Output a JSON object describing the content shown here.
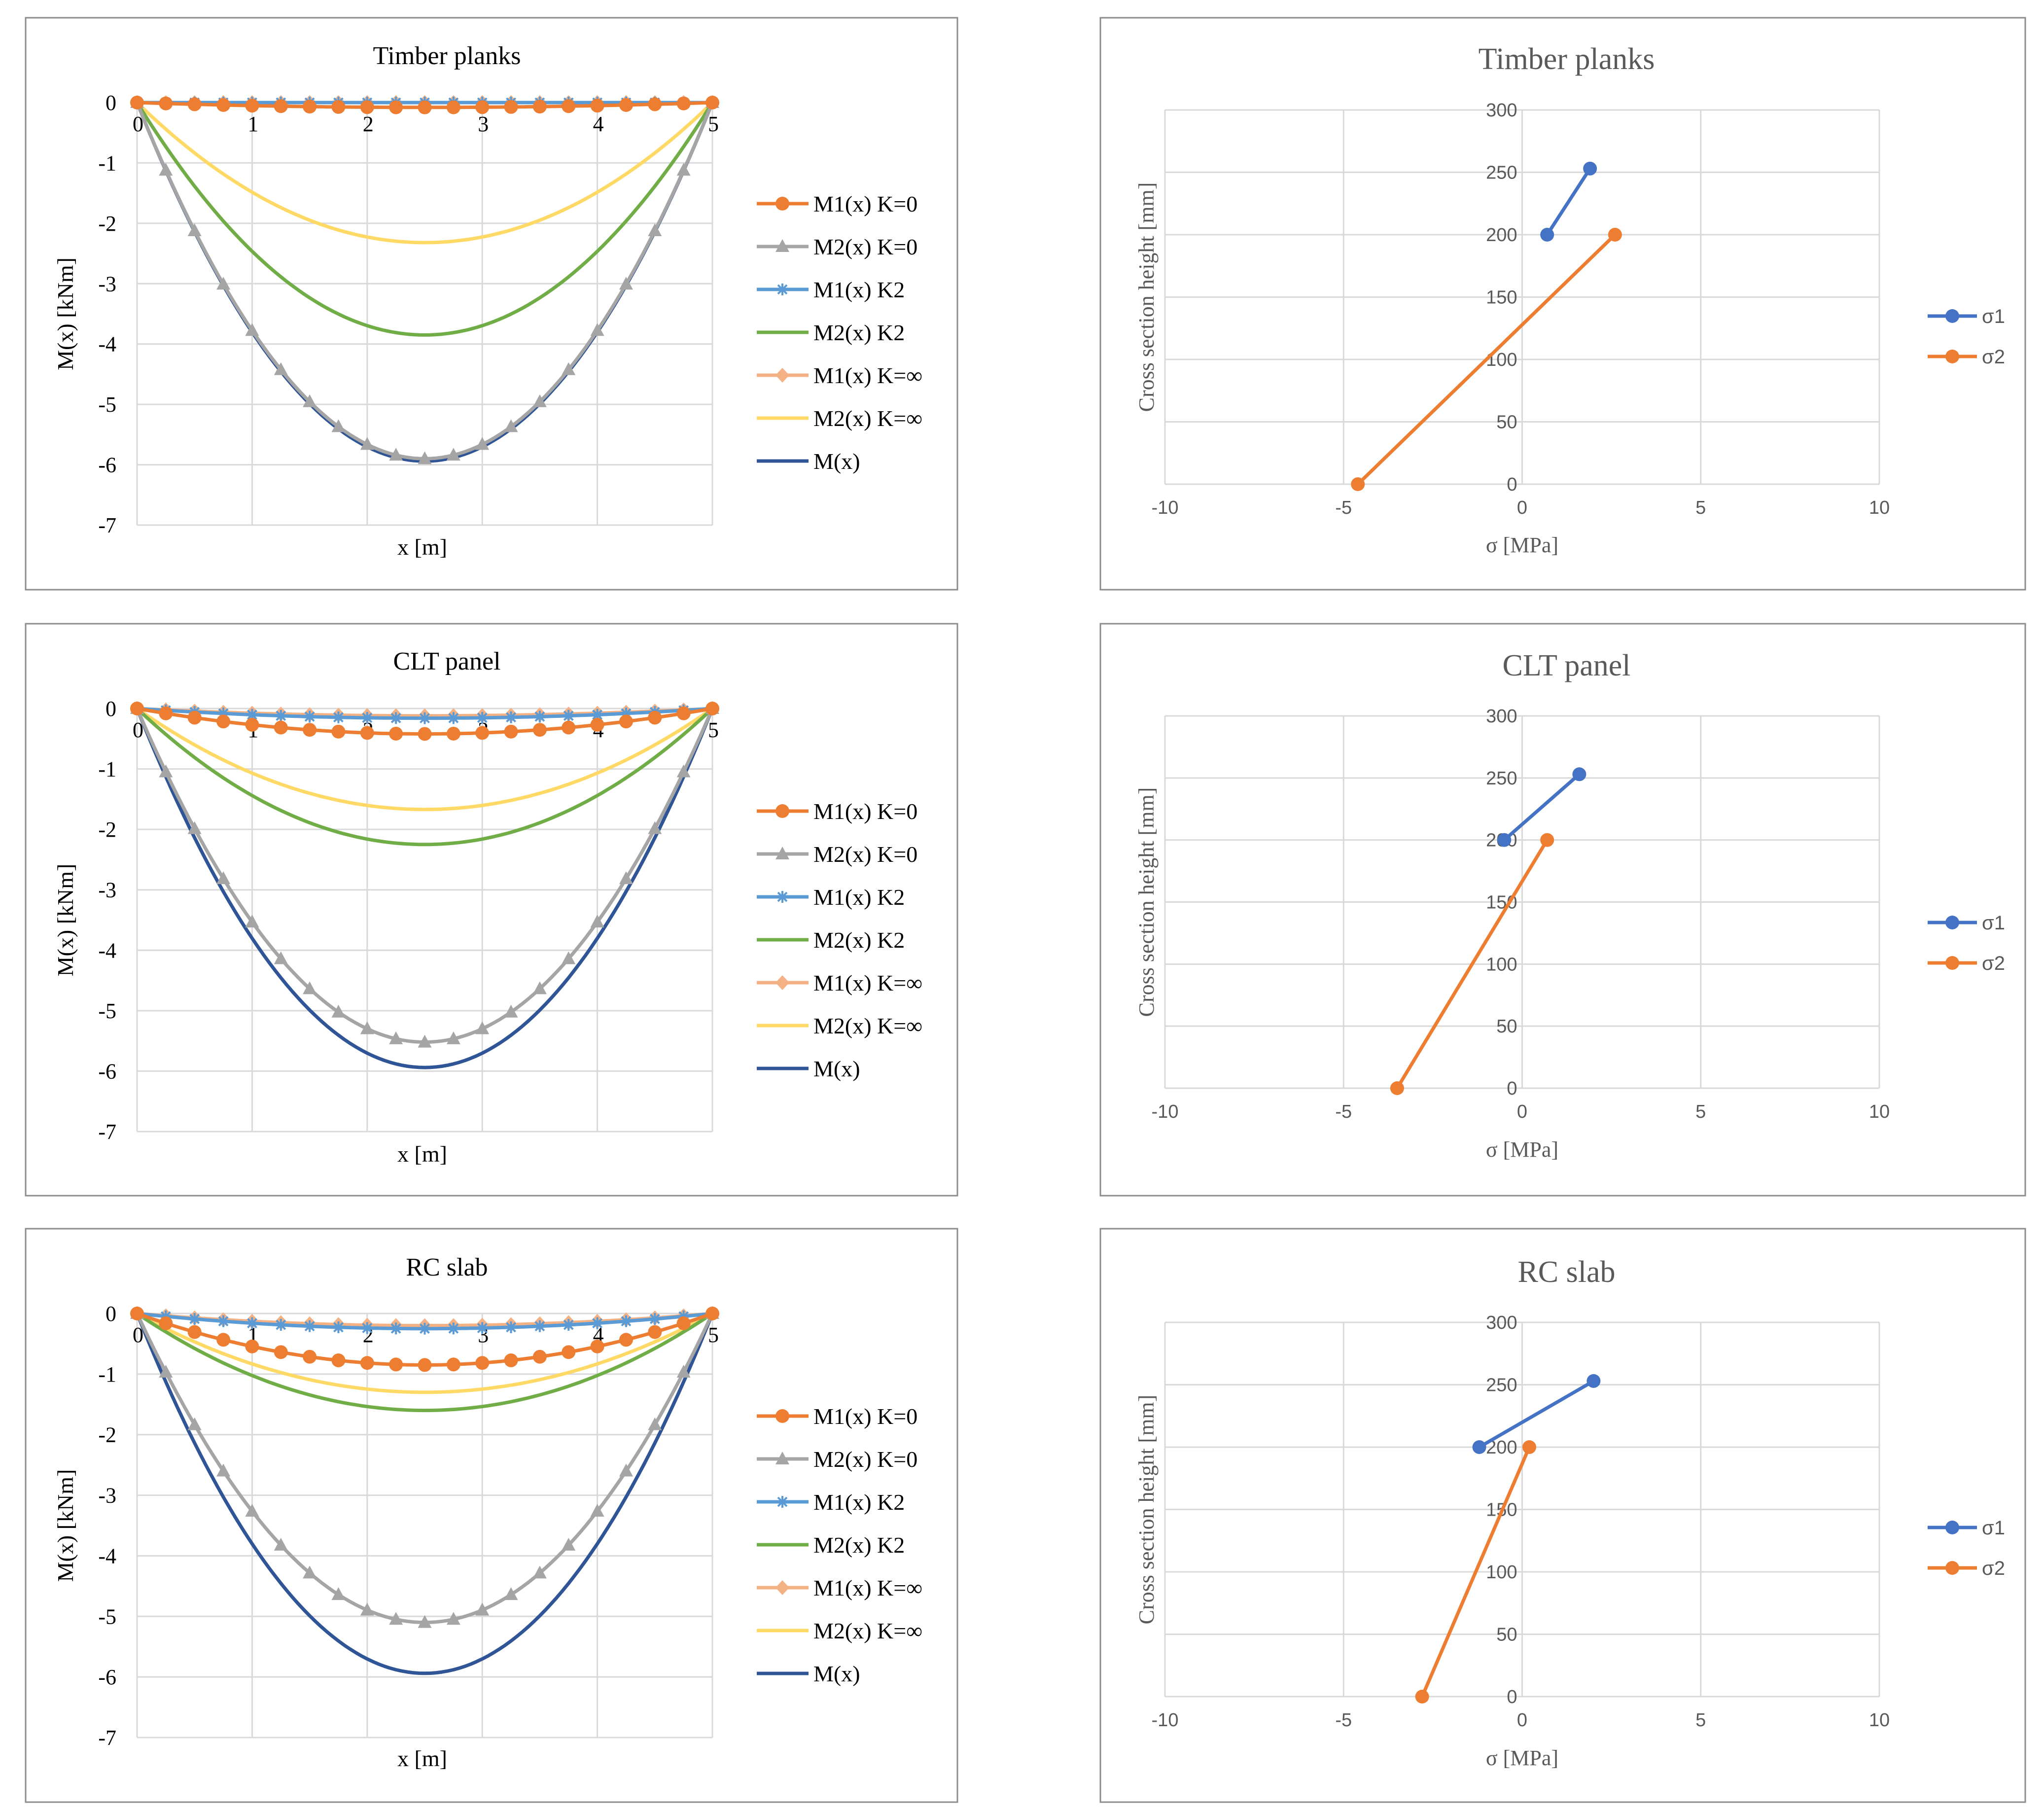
{
  "chart_data": [
    {
      "type": "line",
      "title": "Timber planks",
      "xlabel": "x [m]",
      "ylabel": "M(x) [kNm]",
      "xlim": [
        0,
        5
      ],
      "ylim": [
        -7,
        0
      ],
      "xticks": [
        "0",
        "1",
        "2",
        "3",
        "4",
        "5"
      ],
      "yticks": [
        "0",
        "-1",
        "-2",
        "-3",
        "-4",
        "-5",
        "-6",
        "-7"
      ],
      "legend_position": "right",
      "curve_formula": "parabola: M(x) = 4*Mmid*(x/5)*(1 - x/5)",
      "series": [
        {
          "name": "M1(x) K=0",
          "color": "#ED7D31",
          "marker": "circle",
          "midspan": -0.08
        },
        {
          "name": "M2(x) K=0",
          "color": "#A5A5A5",
          "marker": "triangle",
          "midspan": -5.9
        },
        {
          "name": "M1(x) K2",
          "color": "#5B9BD5",
          "marker": "star",
          "midspan": 0.0
        },
        {
          "name": "M2(x) K2",
          "color": "#70AD47",
          "marker": "none",
          "midspan": -3.85
        },
        {
          "name": "M1(x) K=∞",
          "color": "#F4B183",
          "marker": "diamond",
          "midspan": 0.0
        },
        {
          "name": "M2(x) K=∞",
          "color": "#FFD966",
          "marker": "none",
          "midspan": -2.32
        },
        {
          "name": "M(x)",
          "color": "#2F5597",
          "marker": "none",
          "midspan": -5.94
        }
      ]
    },
    {
      "type": "line",
      "title": "CLT panel",
      "xlabel": "x [m]",
      "ylabel": "M(x) [kNm]",
      "xlim": [
        0,
        5
      ],
      "ylim": [
        -7,
        0
      ],
      "xticks": [
        "0",
        "1",
        "2",
        "3",
        "4",
        "5"
      ],
      "yticks": [
        "0",
        "-1",
        "-2",
        "-3",
        "-4",
        "-5",
        "-6",
        "-7"
      ],
      "legend_position": "right",
      "curve_formula": "parabola: M(x) = 4*Mmid*(x/5)*(1 - x/5)",
      "series": [
        {
          "name": "M1(x) K=0",
          "color": "#ED7D31",
          "marker": "circle",
          "midspan": -0.42
        },
        {
          "name": "M2(x) K=0",
          "color": "#A5A5A5",
          "marker": "triangle",
          "midspan": -5.52
        },
        {
          "name": "M1(x) K2",
          "color": "#5B9BD5",
          "marker": "star",
          "midspan": -0.16
        },
        {
          "name": "M2(x) K2",
          "color": "#70AD47",
          "marker": "none",
          "midspan": -2.25
        },
        {
          "name": "M1(x) K=∞",
          "color": "#F4B183",
          "marker": "diamond",
          "midspan": -0.12
        },
        {
          "name": "M2(x) K=∞",
          "color": "#FFD966",
          "marker": "none",
          "midspan": -1.67
        },
        {
          "name": "M(x)",
          "color": "#2F5597",
          "marker": "none",
          "midspan": -5.94
        }
      ]
    },
    {
      "type": "line",
      "title": "RC slab",
      "xlabel": "x [m]",
      "ylabel": "M(x) [kNm]",
      "xlim": [
        0,
        5
      ],
      "ylim": [
        -7,
        0
      ],
      "xticks": [
        "0",
        "1",
        "2",
        "3",
        "4",
        "5"
      ],
      "yticks": [
        "0",
        "-1",
        "-2",
        "-3",
        "-4",
        "-5",
        "-6",
        "-7"
      ],
      "legend_position": "right",
      "curve_formula": "parabola: M(x) = 4*Mmid*(x/5)*(1 - x/5)",
      "series": [
        {
          "name": "M1(x) K=0",
          "color": "#ED7D31",
          "marker": "circle",
          "midspan": -0.85
        },
        {
          "name": "M2(x) K=0",
          "color": "#A5A5A5",
          "marker": "triangle",
          "midspan": -5.1
        },
        {
          "name": "M1(x) K2",
          "color": "#5B9BD5",
          "marker": "star",
          "midspan": -0.25
        },
        {
          "name": "M2(x) K2",
          "color": "#70AD47",
          "marker": "none",
          "midspan": -1.6
        },
        {
          "name": "M1(x) K=∞",
          "color": "#F4B183",
          "marker": "diamond",
          "midspan": -0.2
        },
        {
          "name": "M2(x) K=∞",
          "color": "#FFD966",
          "marker": "none",
          "midspan": -1.3
        },
        {
          "name": "M(x)",
          "color": "#2F5597",
          "marker": "none",
          "midspan": -5.94
        }
      ]
    },
    {
      "type": "scatter",
      "title": "Timber planks",
      "xlabel": "σ [MPa]",
      "ylabel": "Cross section height [mm]",
      "xlim": [
        -10,
        10
      ],
      "ylim": [
        0,
        300
      ],
      "xticks": [
        "-10",
        "-5",
        "0",
        "5",
        "10"
      ],
      "yticks": [
        "0",
        "50",
        "100",
        "150",
        "200",
        "250",
        "300"
      ],
      "legend_position": "right",
      "series": [
        {
          "name": "σ1",
          "color": "#4472C4",
          "points": [
            [
              0.7,
              200
            ],
            [
              1.9,
              253
            ]
          ]
        },
        {
          "name": "σ2",
          "color": "#ED7D31",
          "points": [
            [
              -4.6,
              0
            ],
            [
              2.6,
              200
            ]
          ]
        }
      ]
    },
    {
      "type": "scatter",
      "title": "CLT panel",
      "xlabel": "σ [MPa]",
      "ylabel": "Cross section height [mm]",
      "xlim": [
        -10,
        10
      ],
      "ylim": [
        0,
        300
      ],
      "xticks": [
        "-10",
        "-5",
        "0",
        "5",
        "10"
      ],
      "yticks": [
        "0",
        "50",
        "100",
        "150",
        "200",
        "250",
        "300"
      ],
      "legend_position": "right",
      "series": [
        {
          "name": "σ1",
          "color": "#4472C4",
          "points": [
            [
              -0.5,
              200
            ],
            [
              1.6,
              253
            ]
          ]
        },
        {
          "name": "σ2",
          "color": "#ED7D31",
          "points": [
            [
              -3.5,
              0
            ],
            [
              0.7,
              200
            ]
          ]
        }
      ]
    },
    {
      "type": "scatter",
      "title": "RC slab",
      "xlabel": "σ [MPa]",
      "ylabel": "Cross section height [mm]",
      "xlim": [
        -10,
        10
      ],
      "ylim": [
        0,
        300
      ],
      "xticks": [
        "-10",
        "-5",
        "0",
        "5",
        "10"
      ],
      "yticks": [
        "0",
        "50",
        "100",
        "150",
        "200",
        "250",
        "300"
      ],
      "legend_position": "right",
      "series": [
        {
          "name": "σ1",
          "color": "#4472C4",
          "points": [
            [
              -1.2,
              200
            ],
            [
              2.0,
              253
            ]
          ]
        },
        {
          "name": "σ2",
          "color": "#ED7D31",
          "points": [
            [
              -2.8,
              0
            ],
            [
              0.2,
              200
            ]
          ]
        }
      ]
    }
  ]
}
